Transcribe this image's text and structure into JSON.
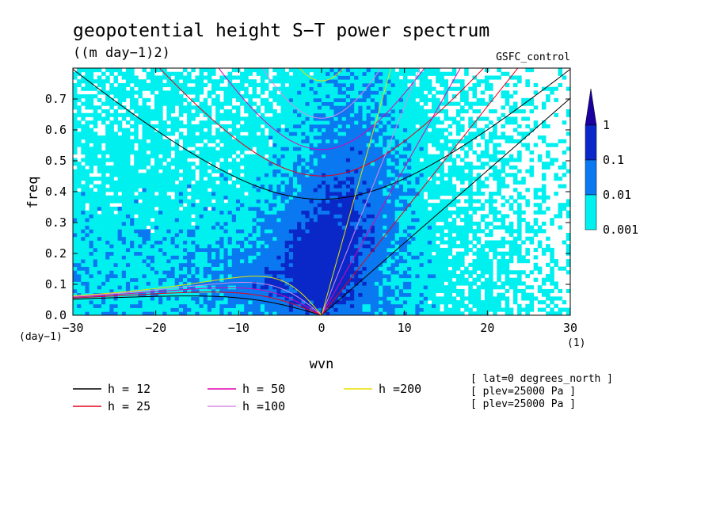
{
  "chart_data": {
    "type": "heatmap",
    "title": "geopotential height S−T power spectrum",
    "subtitle": "((m day−1)2)",
    "dataset": "GSFC_control",
    "xlabel": "wvn",
    "ylabel": "freq",
    "x_unit": "(1)",
    "y_unit": "(day−1)",
    "xlim": [
      -30,
      30
    ],
    "ylim": [
      0,
      0.8
    ],
    "xticks": [
      "−30",
      "−20",
      "−10",
      "0",
      "10",
      "20",
      "30"
    ],
    "yticks": [
      "0.0",
      "0.1",
      "0.2",
      "0.3",
      "0.4",
      "0.5",
      "0.6",
      "0.7"
    ],
    "colorbar": {
      "levels": [
        "0.001",
        "0.01",
        "0.1",
        "1"
      ],
      "colors": [
        "#00f0f0",
        "#0a78f0",
        "#0a28c8",
        "#1a00a0"
      ]
    },
    "dispersion_curves": [
      {
        "label": "h = 12",
        "h": 12,
        "color": "#000000"
      },
      {
        "label": "h = 25",
        "h": 25,
        "color": "#e8001a"
      },
      {
        "label": "h = 50",
        "h": 50,
        "color": "#e000b4"
      },
      {
        "label": "h =100",
        "h": 100,
        "color": "#d88be6"
      },
      {
        "label": "h =200",
        "h": 200,
        "color": "#e8e000"
      }
    ],
    "annotations": [
      "[ lat=0 degrees_north ]",
      "[ plev=25000 Pa ]",
      "[ plev=25000 Pa ]"
    ]
  }
}
